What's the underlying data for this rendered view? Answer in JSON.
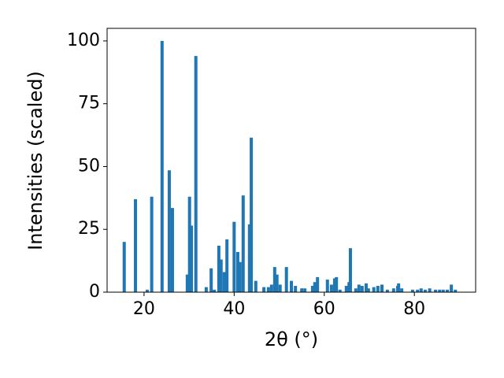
{
  "chart_data": {
    "type": "bar",
    "xlabel": "2θ (°)",
    "ylabel": "Intensities (scaled)",
    "x": [
      15.6,
      18.1,
      20.7,
      21.7,
      24.0,
      25.6,
      26.3,
      29.6,
      30.1,
      30.5,
      31.5,
      33.8,
      34.9,
      35.6,
      36.6,
      37.1,
      37.8,
      38.4,
      40.0,
      40.8,
      41.3,
      42.0,
      43.4,
      43.8,
      44.8,
      46.6,
      47.6,
      48.3,
      49.0,
      49.5,
      50.2,
      51.6,
      52.7,
      53.6,
      55.0,
      55.7,
      57.4,
      57.9,
      58.5,
      60.7,
      61.6,
      62.3,
      62.7,
      63.5,
      64.9,
      65.5,
      65.8,
      67.0,
      67.7,
      68.4,
      69.3,
      69.8,
      71.0,
      71.9,
      72.8,
      74.0,
      75.4,
      76.3,
      76.5,
      77.2,
      79.6,
      80.7,
      81.5,
      82.4,
      83.4,
      84.7,
      85.6,
      86.4,
      87.3,
      88.2,
      89.1
    ],
    "values": [
      20,
      37,
      1,
      38,
      100,
      48.5,
      33.5,
      7,
      38,
      26.5,
      94,
      2,
      9.5,
      1,
      18.5,
      13,
      8,
      21,
      28,
      16,
      12,
      38.5,
      27,
      61.5,
      4.5,
      2,
      2,
      3,
      10,
      7,
      3,
      10,
      4.5,
      2.5,
      1.5,
      1.5,
      2.5,
      4,
      6,
      5,
      3,
      5.5,
      6,
      1,
      2.5,
      4,
      17.5,
      1.5,
      3,
      2.5,
      3.5,
      1.5,
      2,
      2.5,
      3,
      1,
      1.5,
      2.5,
      3.5,
      1.5,
      1,
      1,
      1.5,
      1,
      1.5,
      1,
      1,
      1,
      1,
      3,
      1
    ],
    "color": "#1f77b4",
    "xlim": [
      11.8,
      93.6
    ],
    "xticks": [
      20,
      40,
      60,
      80
    ],
    "ylim": [
      0,
      105
    ],
    "yticks": [
      0,
      25,
      50,
      75,
      100
    ]
  }
}
